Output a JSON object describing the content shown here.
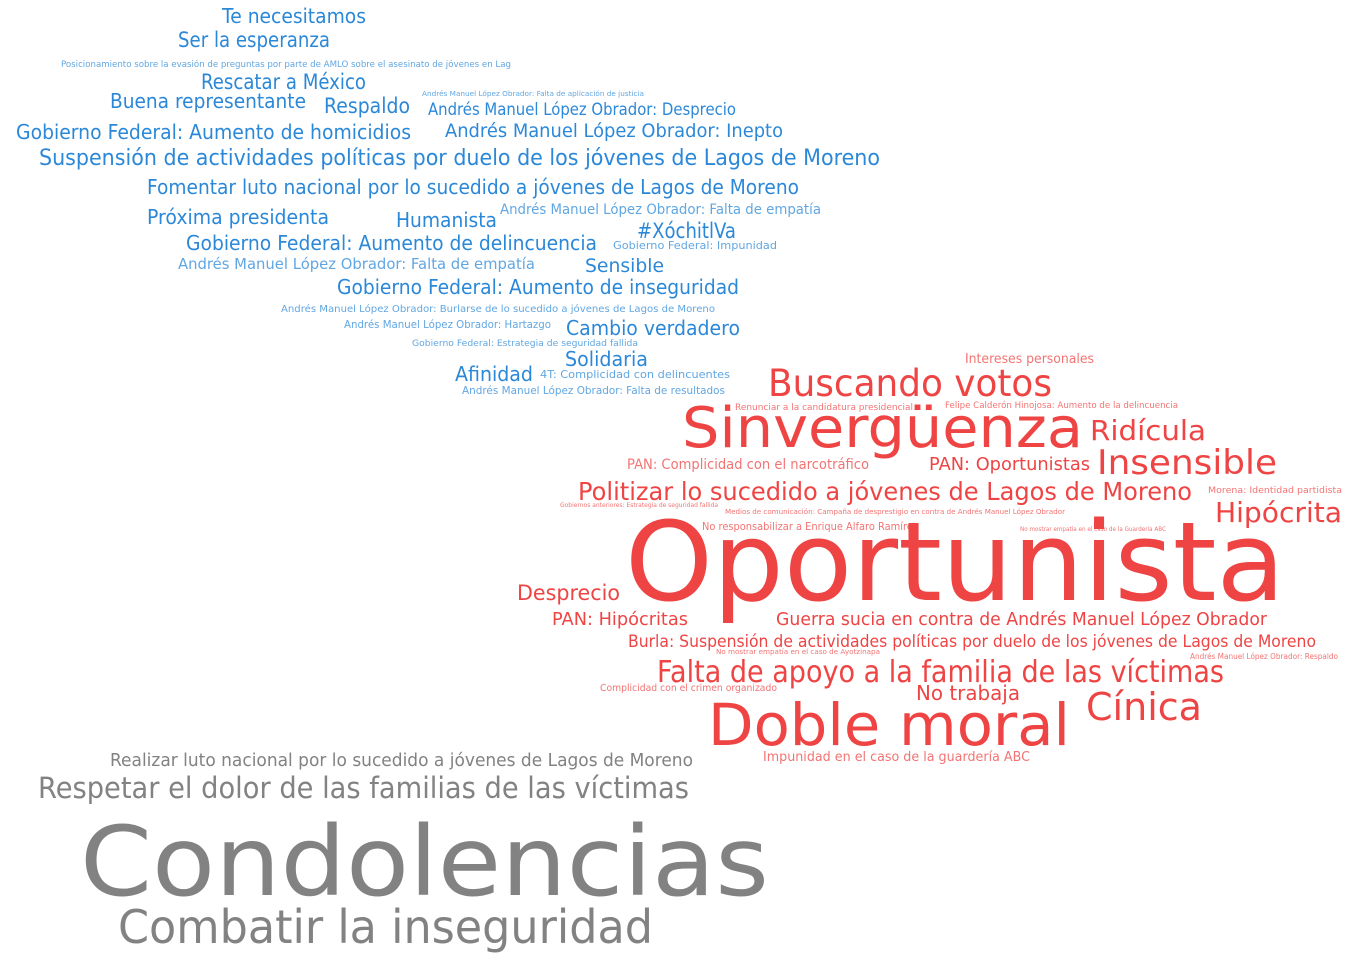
{
  "word_groups": [
    {
      "color": "#2b88d8",
      "words": [
        "Te necesitamos",
        "Ser la esperanza",
        "Posicionamiento sobre la evasión de preguntas por parte de AMLO sobre el asesinato de jóvenes en Lag",
        "Rescatar a México",
        "Andrés Manuel López Obrador: Falta de aplicación de justicia",
        "Buena representante",
        "Respaldo",
        "Andrés Manuel López Obrador: Desprecio",
        "Gobierno Federal: Aumento de homicidios",
        "Andrés Manuel López Obrador: Inepto",
        "Suspensión de actividades políticas por duelo de los jóvenes de Lagos de Moreno",
        "Fomentar luto nacional por lo sucedido a jóvenes de Lagos de Moreno",
        "Próxima presidenta",
        "Humanista",
        "Andrés Manuel López Obrador: Falta de empatía",
        "#XóchitlVa",
        "Gobierno Federal: Aumento de delincuencia",
        "Gobierno Federal: Impunidad",
        "Andrés Manuel López Obrador: Falta de empatía",
        "Sensible",
        "Gobierno Federal: Aumento de inseguridad",
        "Andrés Manuel López Obrador: Burlarse de lo sucedido a jóvenes de Lagos de Moreno",
        "Andrés Manuel López Obrador: Hartazgo",
        "Cambio verdadero",
        "Gobierno Federal: Estrategia de seguridad fallida",
        "Solidaria",
        "Afinidad",
        "4T: Complicidad con delincuentes",
        "Andrés Manuel López Obrador: Falta de resultados"
      ]
    },
    {
      "color": "#ef4444",
      "words": [
        "Intereses personales",
        "Buscando votos",
        "Renunciar a la candidatura presidencial",
        "Felipe Calderón Hinojosa: Aumento de la delincuencia",
        "Sinvergüenza",
        "Ridícula",
        "PAN: Complicidad con el narcotráfico",
        "PAN: Oportunistas",
        "Insensible",
        "Politizar lo sucedido a jóvenes de Lagos de Moreno",
        "Morena: Identidad partidista",
        "Gobiernos anteriores: Estrategia de seguridad fallida",
        "Medios de comunicación: Campaña de desprestigio en contra de Andrés Manuel López Obrador",
        "Hipócrita",
        "No responsabilizar a Enrique Alfaro Ramírez",
        "No mostrar empatía en el caso de la Guardería ABC",
        "Oportunista",
        "Desprecio",
        "PAN: Hipócritas",
        "Guerra sucia en contra de Andrés Manuel López Obrador",
        "Burla: Suspensión de actividades políticas por duelo de los jóvenes de Lagos de Moreno",
        "No mostrar empatía en el caso de Ayotzinapa",
        "Andrés Manuel López Obrador: Respaldo",
        "Falta de apoyo a la familia de las víctimas",
        "Complicidad con el crimen organizado",
        "No trabaja",
        "Cínica",
        "Doble moral",
        "Impunidad en el caso de la guardería ABC"
      ]
    },
    {
      "color": "#828282",
      "words": [
        "Realizar luto nacional por lo sucedido a jóvenes de Lagos de Moreno",
        "Respetar el dolor de las familias de las víctimas",
        "Condolencias",
        "Combatir la inseguridad"
      ]
    }
  ]
}
